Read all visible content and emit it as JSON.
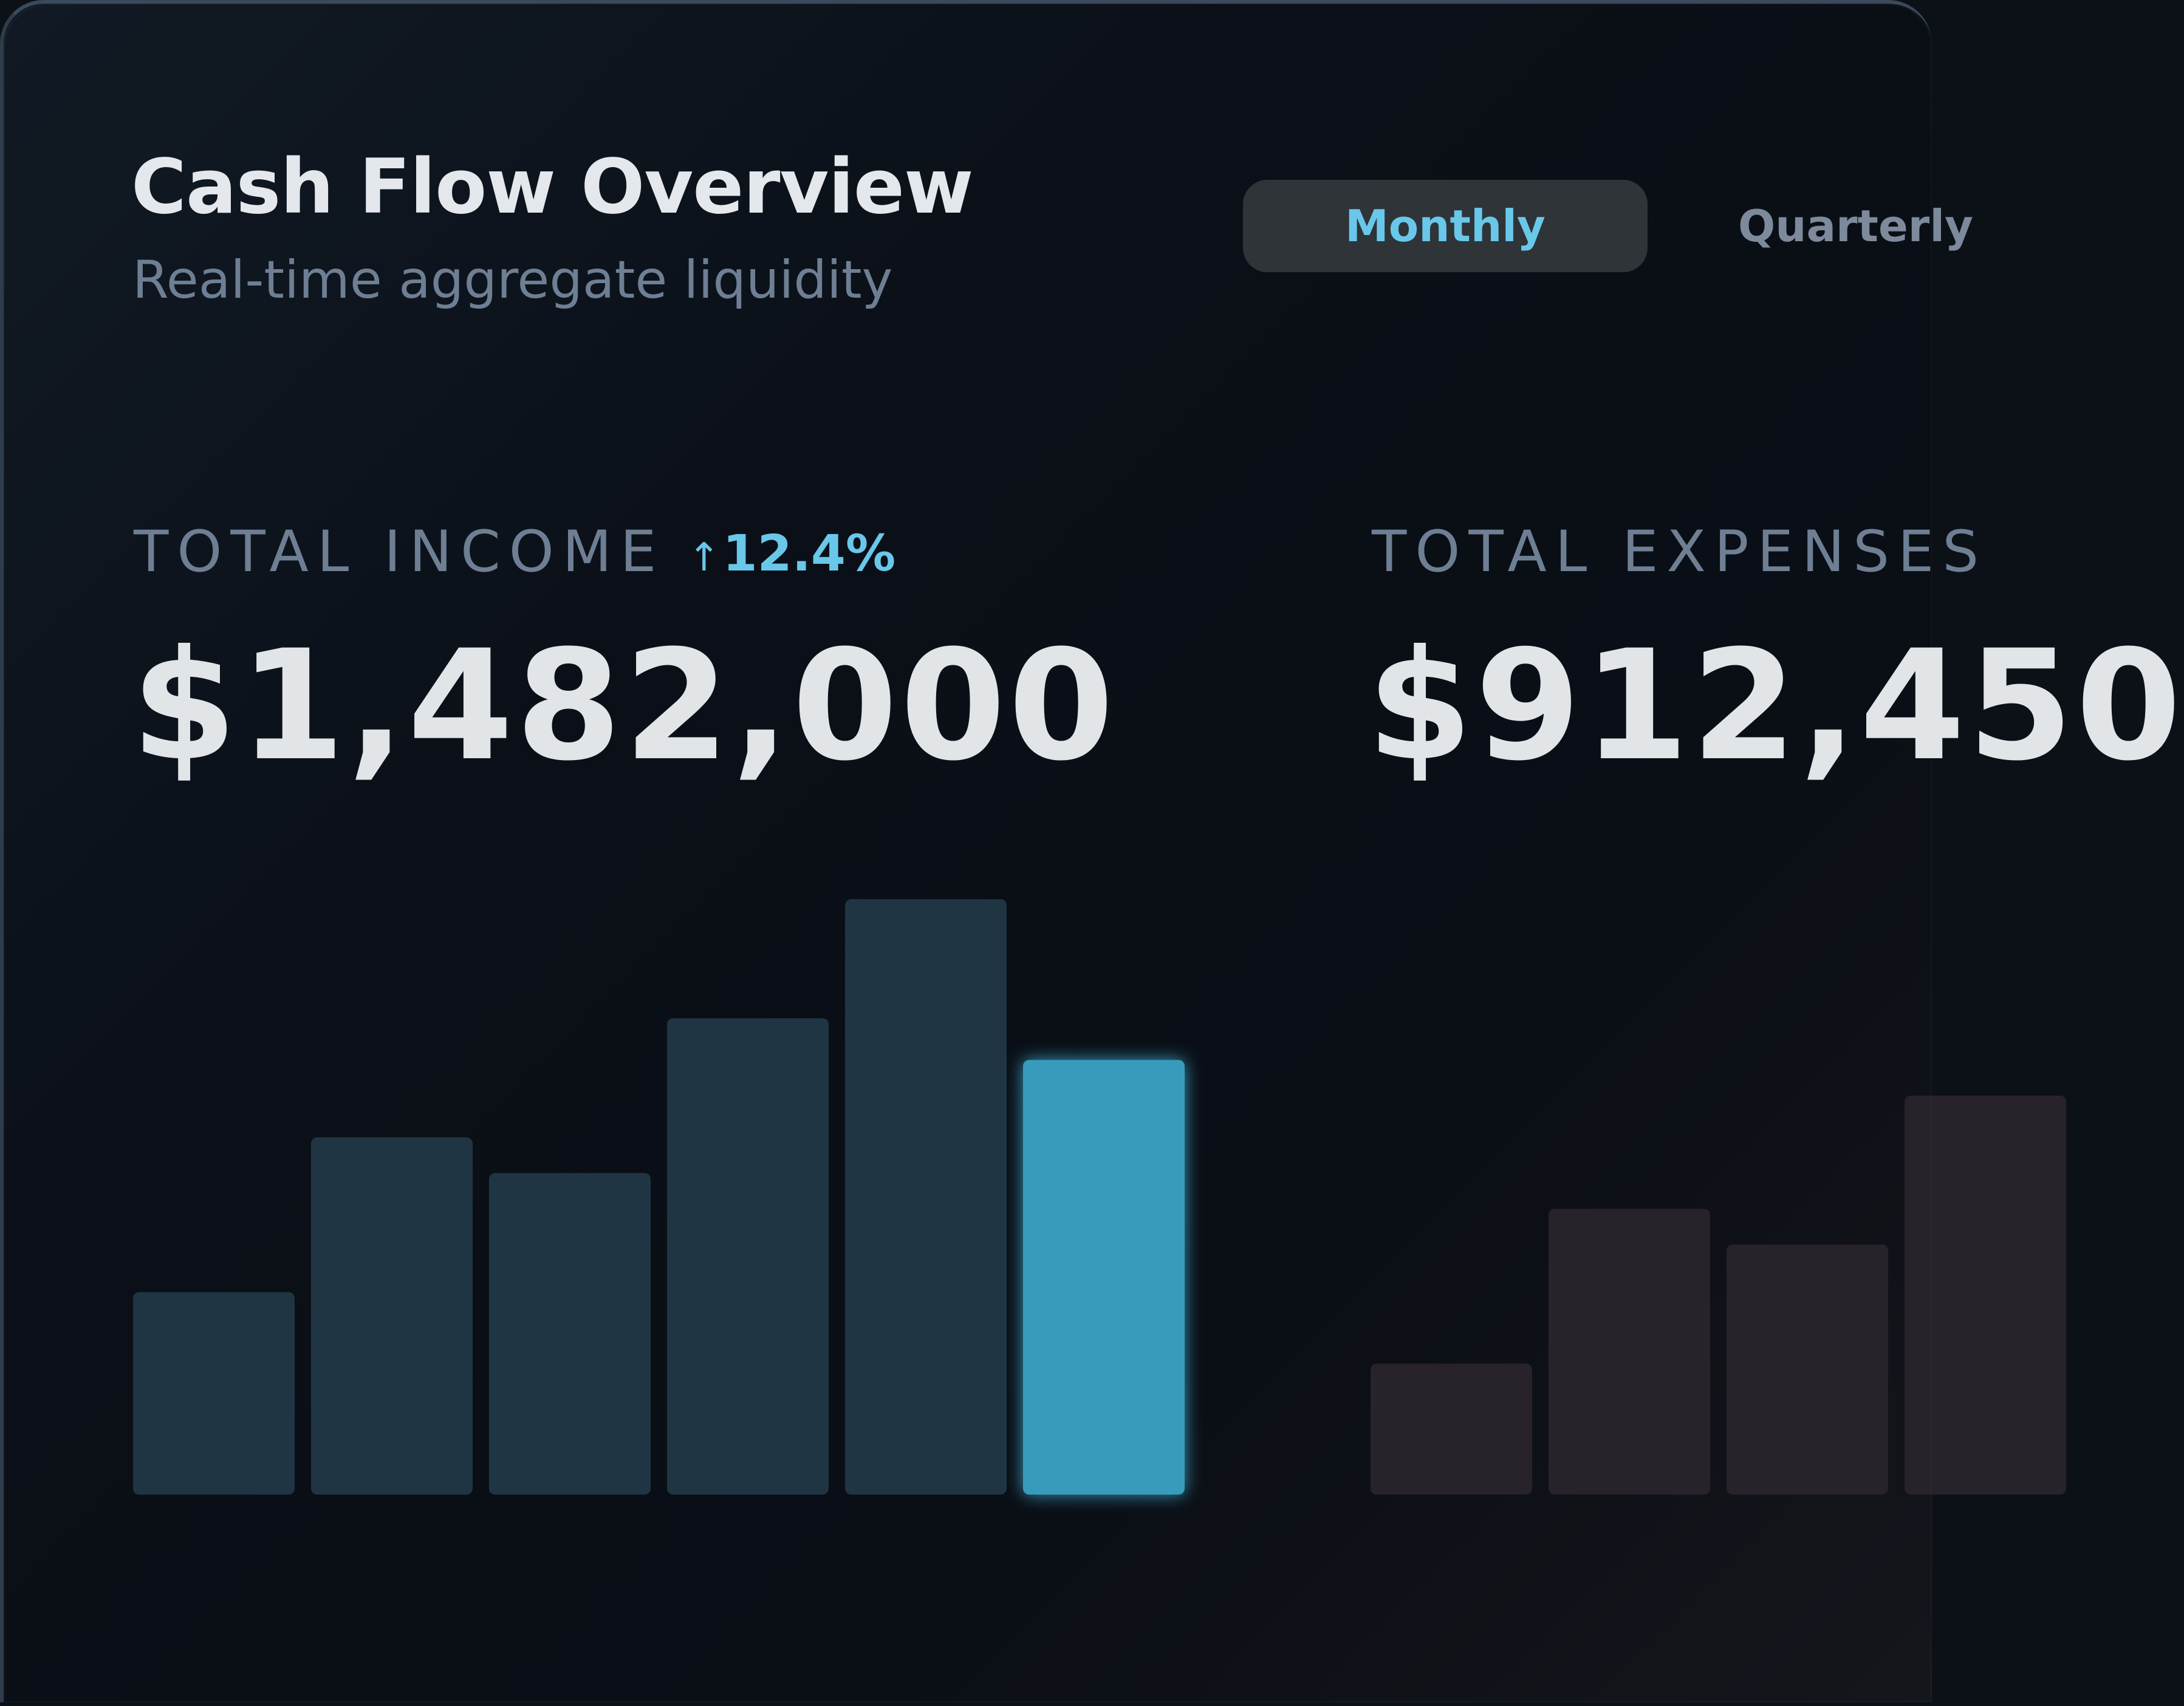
{
  "header": {
    "title": "Cash Flow Overview",
    "subtitle": "Real-time aggregate liquidity"
  },
  "period_tabs": {
    "monthly": "Monthly",
    "quarterly": "Quarterly",
    "selected": "Monthly"
  },
  "income": {
    "label": "TOTAL INCOME",
    "trend_arrow": "↑",
    "trend": "12.4%",
    "value": "$1,482,000"
  },
  "expenses": {
    "label": "TOTAL EXPENSES",
    "value": "$912,450"
  },
  "colors": {
    "accent": "#69c7ea",
    "income_bar": "#203543",
    "income_bar_active": "#389bbb",
    "expense_bar": "#28222a"
  },
  "chart_data": [
    {
      "type": "bar",
      "name": "income",
      "values": [
        34,
        60,
        54,
        80,
        100,
        73
      ],
      "highlight_index": 5,
      "ylim": [
        0,
        100
      ]
    },
    {
      "type": "bar",
      "name": "expenses",
      "values": [
        22,
        48,
        42,
        67
      ],
      "ylim": [
        0,
        100
      ]
    }
  ]
}
